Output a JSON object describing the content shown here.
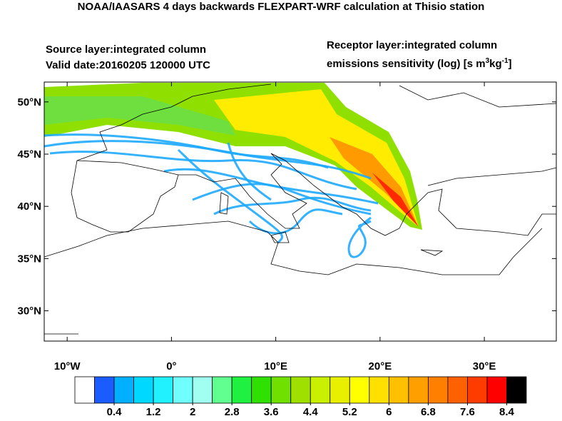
{
  "header": {
    "title": "NOAA/IAASARS 4 days backwards FLEXPART-WRF calculation at Thisio station",
    "source_layer": "Source layer:integrated column",
    "valid_date": "Valid date:20160205 120000 UTC",
    "receptor_layer": "Receptor layer:integrated column",
    "units": {
      "text": "emissions sensitivity (log) [s m",
      "sup1": "3",
      "mid": "kg",
      "sup2": "-1",
      "end": "]"
    }
  },
  "map": {
    "lon_lim": [
      -12.2,
      36.9
    ],
    "lat_lim": [
      27.1,
      51.9
    ],
    "lat_ticks": [
      {
        "value": 50,
        "label": "50°N"
      },
      {
        "value": 45,
        "label": "45°N"
      },
      {
        "value": 40,
        "label": "40°N"
      },
      {
        "value": 35,
        "label": "35°N"
      },
      {
        "value": 30,
        "label": "30°N"
      }
    ],
    "lon_ticks": [
      {
        "value": -10,
        "label": "10°W"
      },
      {
        "value": 0,
        "label": "0°"
      },
      {
        "value": 10,
        "label": "10°E"
      },
      {
        "value": 20,
        "label": "20°E"
      },
      {
        "value": 30,
        "label": "30°E"
      }
    ]
  },
  "colorbar": {
    "lim": [
      -0.4,
      8.8
    ],
    "colors": [
      "#ffffff",
      "#1a5cff",
      "#00b0ff",
      "#00d8ff",
      "#20f0ff",
      "#70ffff",
      "#a0fff0",
      "#60ff90",
      "#20f040",
      "#30e000",
      "#70e000",
      "#a0e000",
      "#c8f000",
      "#e8f000",
      "#ffff00",
      "#ffe000",
      "#ffc000",
      "#ffa000",
      "#ff8000",
      "#ff6000",
      "#ff3c00",
      "#ff0000",
      "#000000"
    ],
    "ticks": [
      0.4,
      1.2,
      2,
      2.8,
      3.6,
      4.4,
      5.2,
      6,
      6.8,
      7.6,
      8.4
    ]
  }
}
